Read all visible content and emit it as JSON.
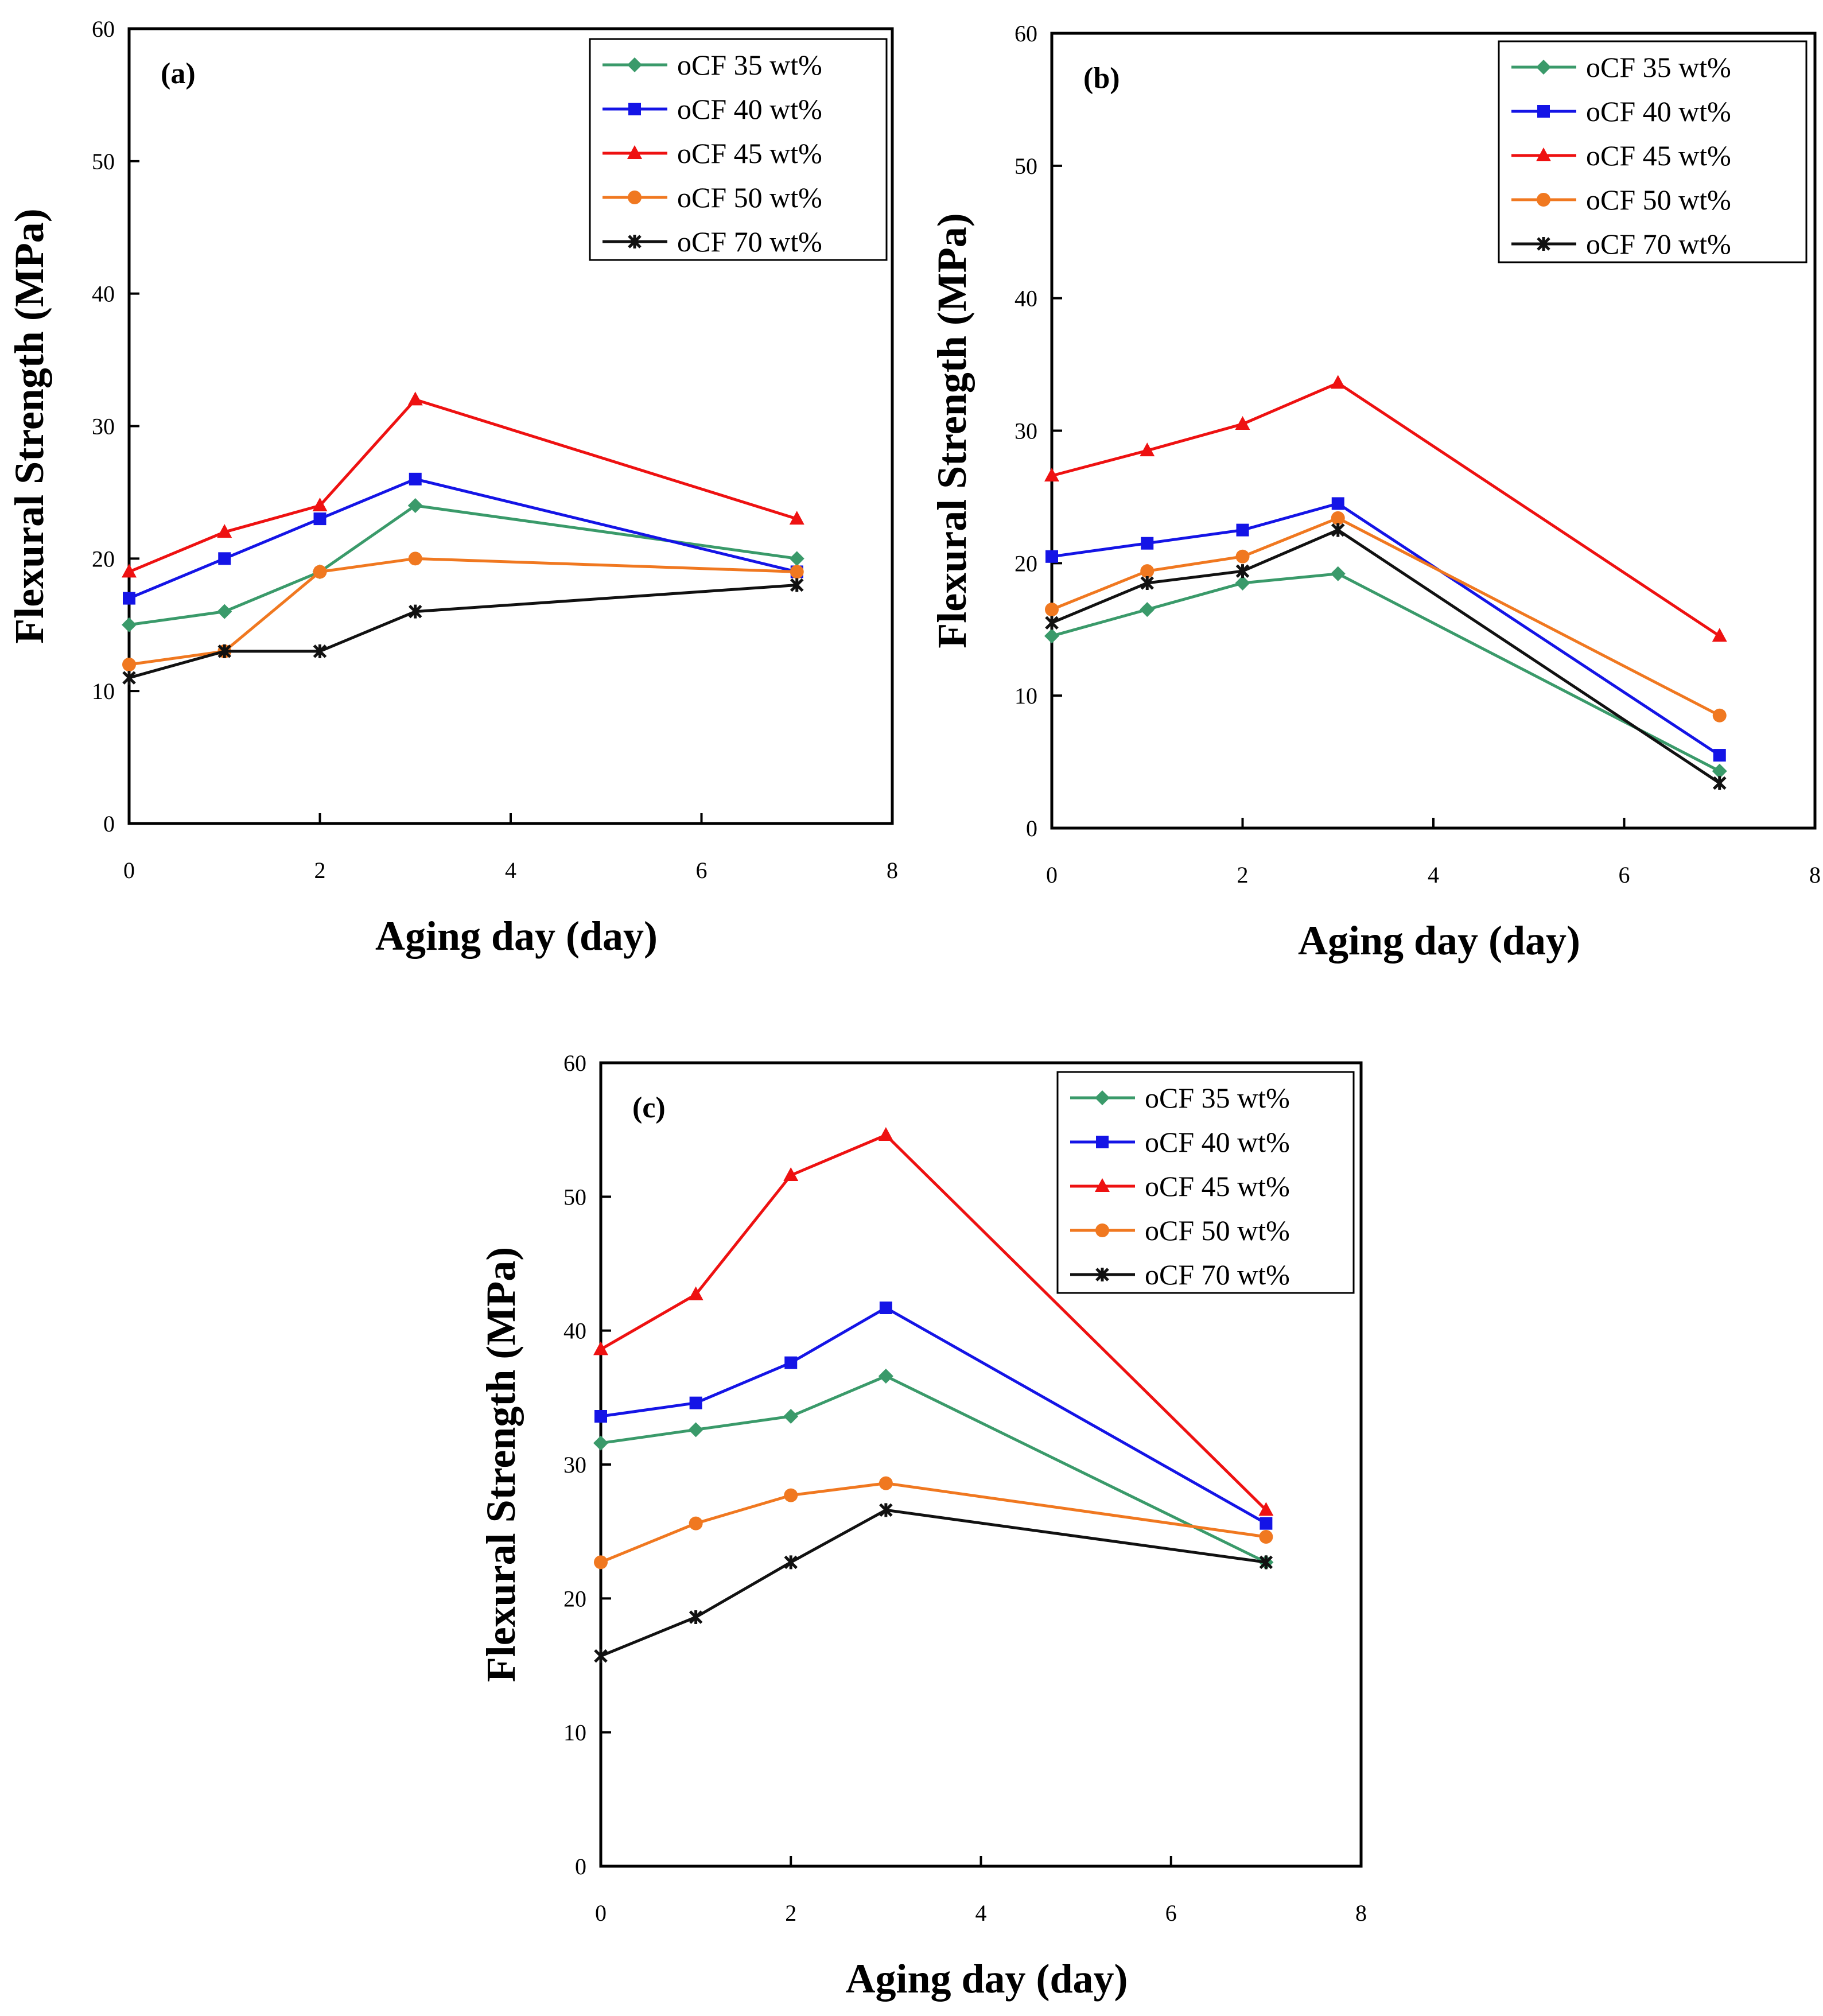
{
  "colors": {
    "oCF 35 wt%": "#3a9a6a",
    "oCF 40 wt%": "#1414e6",
    "oCF 45 wt%": "#ee1111",
    "oCF 50 wt%": "#f07820",
    "oCF 70 wt%": "#111111"
  },
  "markers": {
    "oCF 35 wt%": "diamond",
    "oCF 40 wt%": "square",
    "oCF 45 wt%": "triangle",
    "oCF 50 wt%": "circle",
    "oCF 70 wt%": "star"
  },
  "chart_data": [
    {
      "type": "line",
      "panel_label": "(a)",
      "xlabel": "Aging day (day)",
      "ylabel": "Flexural Strength (MPa)",
      "xlim": [
        0,
        8
      ],
      "ylim": [
        0,
        60
      ],
      "xticks": [
        "0",
        "2",
        "4",
        "6",
        "8"
      ],
      "yticks": [
        "0",
        "10",
        "20",
        "30",
        "40",
        "50",
        "60"
      ],
      "legend_position": "top-right",
      "x": [
        0,
        1,
        2,
        3,
        7
      ],
      "series": [
        {
          "name": "oCF 35 wt%",
          "values": [
            15,
            16,
            19,
            24,
            20
          ]
        },
        {
          "name": "oCF 40 wt%",
          "values": [
            17,
            20,
            23,
            26,
            19
          ]
        },
        {
          "name": "oCF 45 wt%",
          "values": [
            19,
            22,
            24,
            32,
            23
          ]
        },
        {
          "name": "oCF 50 wt%",
          "values": [
            12,
            13,
            19,
            20,
            19
          ]
        },
        {
          "name": "oCF 70 wt%",
          "values": [
            11,
            13,
            13,
            16,
            18
          ]
        }
      ]
    },
    {
      "type": "line",
      "panel_label": "(b)",
      "xlabel": "Aging day (day)",
      "ylabel": "Flexural Strength (MPa)",
      "xlim": [
        0,
        8
      ],
      "ylim": [
        0,
        60
      ],
      "xticks": [
        "0",
        "2",
        "4",
        "6",
        "8"
      ],
      "yticks": [
        "0",
        "10",
        "20",
        "30",
        "40",
        "50",
        "60"
      ],
      "legend_position": "top-right",
      "x": [
        0,
        1,
        2,
        3,
        7
      ],
      "series": [
        {
          "name": "oCF 35 wt%",
          "values": [
            14.5,
            16.5,
            18.5,
            19.2,
            4.3
          ]
        },
        {
          "name": "oCF 40 wt%",
          "values": [
            20.5,
            21.5,
            22.5,
            24.5,
            5.5
          ]
        },
        {
          "name": "oCF 45 wt%",
          "values": [
            26.6,
            28.5,
            30.5,
            33.6,
            14.5
          ]
        },
        {
          "name": "oCF 50 wt%",
          "values": [
            16.5,
            19.4,
            20.5,
            23.4,
            8.5
          ]
        },
        {
          "name": "oCF 70 wt%",
          "values": [
            15.5,
            18.5,
            19.4,
            22.5,
            3.4
          ]
        }
      ]
    },
    {
      "type": "line",
      "panel_label": "(c)",
      "xlabel": "Aging day (day)",
      "ylabel": "Flexural Strength (MPa)",
      "xlim": [
        0,
        8
      ],
      "ylim": [
        0,
        60
      ],
      "xticks": [
        "0",
        "2",
        "4",
        "6",
        "8"
      ],
      "yticks": [
        "0",
        "10",
        "20",
        "30",
        "40",
        "50",
        "60"
      ],
      "legend_position": "top-right",
      "x": [
        0,
        1,
        2,
        3,
        7
      ],
      "series": [
        {
          "name": "oCF 35 wt%",
          "values": [
            31.6,
            32.6,
            33.6,
            36.6,
            22.7
          ]
        },
        {
          "name": "oCF 40 wt%",
          "values": [
            33.6,
            34.6,
            37.6,
            41.7,
            25.6
          ]
        },
        {
          "name": "oCF 45 wt%",
          "values": [
            38.6,
            42.7,
            51.6,
            54.6,
            26.6
          ]
        },
        {
          "name": "oCF 50 wt%",
          "values": [
            22.7,
            25.6,
            27.7,
            28.6,
            24.6
          ]
        },
        {
          "name": "oCF 70 wt%",
          "values": [
            15.7,
            18.6,
            22.7,
            26.6,
            22.7
          ]
        }
      ]
    }
  ]
}
